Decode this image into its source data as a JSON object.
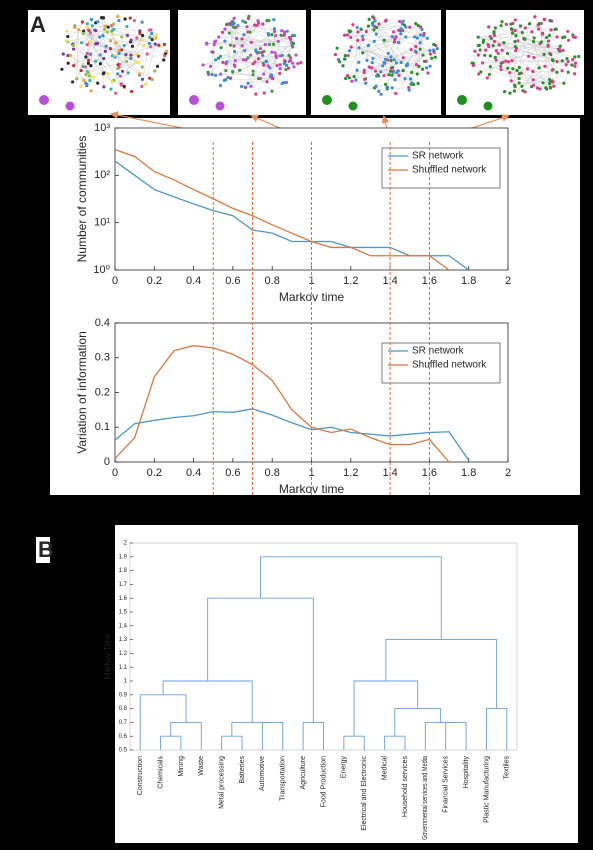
{
  "panels": {
    "a": "A",
    "b": "B"
  },
  "chart_data": [
    {
      "type": "line",
      "yscale": "log",
      "legend": "upper right",
      "ylabel": "Number of communities",
      "xlabel": "Markov time",
      "x": [
        0,
        0.1,
        0.2,
        0.3,
        0.4,
        0.5,
        0.6,
        0.7,
        0.8,
        0.9,
        1.0,
        1.1,
        1.2,
        1.3,
        1.4,
        1.5,
        1.6,
        1.7,
        1.8
      ],
      "series": [
        {
          "name": "SR network",
          "color": "#4f97c9",
          "values": [
            200,
            100,
            50,
            35,
            25,
            18,
            14,
            7,
            6,
            4,
            4,
            4,
            3,
            3,
            3,
            2,
            2,
            2,
            1
          ]
        },
        {
          "name": "Shuffled network",
          "color": "#d9773f",
          "values": [
            350,
            250,
            120,
            80,
            50,
            32,
            20,
            14,
            9,
            6,
            4,
            3,
            3,
            2,
            2,
            2,
            2,
            1,
            null
          ]
        }
      ],
      "xlim": [
        0,
        2
      ],
      "xticks": [
        0,
        0.2,
        0.4,
        0.6,
        0.8,
        1,
        1.2,
        1.4,
        1.6,
        1.8,
        2
      ],
      "ylim": [
        1,
        1000
      ],
      "yticks": [
        {
          "value": 1,
          "label": "10⁰"
        },
        {
          "value": 10,
          "label": "10¹"
        },
        {
          "value": 100,
          "label": "10²"
        },
        {
          "value": 1000,
          "label": "10³"
        }
      ],
      "vlines": [
        0.5,
        0.7,
        1.0,
        1.4,
        1.6
      ],
      "vline_color": "#e06a2a"
    },
    {
      "type": "line",
      "legend": "upper right",
      "ylabel": "Variation of information",
      "xlabel": "Markov time",
      "x": [
        0,
        0.1,
        0.2,
        0.3,
        0.4,
        0.5,
        0.6,
        0.7,
        0.8,
        0.9,
        1.0,
        1.1,
        1.2,
        1.3,
        1.4,
        1.5,
        1.6,
        1.7,
        1.8
      ],
      "series": [
        {
          "name": "SR network",
          "color": "#4f97c9",
          "values": [
            0.063,
            0.11,
            0.12,
            0.128,
            0.133,
            0.145,
            0.143,
            0.153,
            0.135,
            0.113,
            0.093,
            0.1,
            0.085,
            0.08,
            0.075,
            0.08,
            0.085,
            0.087,
            0.005
          ]
        },
        {
          "name": "Shuffled network",
          "color": "#d9773f",
          "values": [
            0.01,
            0.07,
            0.245,
            0.32,
            0.335,
            0.328,
            0.31,
            0.28,
            0.235,
            0.15,
            0.1,
            0.085,
            0.095,
            0.07,
            0.05,
            0.05,
            0.065,
            0.0,
            null
          ]
        }
      ],
      "xlim": [
        0,
        2
      ],
      "xticks": [
        0,
        0.2,
        0.4,
        0.6,
        0.8,
        1,
        1.2,
        1.4,
        1.6,
        1.8,
        2
      ],
      "ylim": [
        0,
        0.4
      ],
      "yticks": [
        0,
        0.1,
        0.2,
        0.3,
        0.4
      ]
    },
    {
      "type": "dendrogram",
      "ylabel": "Markov Time",
      "color": "#6a9fd8",
      "ylim": [
        0.5,
        2
      ],
      "yticks": [
        0.5,
        0.6,
        0.7,
        0.8,
        0.9,
        1,
        1.1,
        1.2,
        1.3,
        1.4,
        1.5,
        1.6,
        1.7,
        1.8,
        1.9,
        2
      ],
      "tree": {
        "height": 1.9,
        "children": [
          {
            "height": 1.6,
            "children": [
              {
                "height": 1.0,
                "children": [
                  {
                    "height": 0.9,
                    "children": [
                      {
                        "label": "Construction"
                      },
                      {
                        "height": 0.7,
                        "children": [
                          {
                            "height": 0.6,
                            "children": [
                              {
                                "label": "Chemicals"
                              },
                              {
                                "label": "Mining"
                              }
                            ]
                          },
                          {
                            "label": "Waste"
                          }
                        ]
                      }
                    ]
                  },
                  {
                    "height": 0.7,
                    "children": [
                      {
                        "height": 0.6,
                        "children": [
                          {
                            "label": "Metal processing"
                          },
                          {
                            "label": "Batteries"
                          }
                        ]
                      },
                      {
                        "height": 0.7,
                        "children": [
                          {
                            "label": "Automotive"
                          },
                          {
                            "label": "Transportation"
                          }
                        ]
                      }
                    ]
                  }
                ]
              },
              {
                "height": 0.7,
                "children": [
                  {
                    "label": "Agriculture"
                  },
                  {
                    "label": "Food Production"
                  }
                ]
              }
            ]
          },
          {
            "height": 1.3,
            "children": [
              {
                "height": 1.0,
                "children": [
                  {
                    "height": 0.6,
                    "children": [
                      {
                        "label": "Energy"
                      },
                      {
                        "label": "Electrical and Electronic"
                      }
                    ]
                  },
                  {
                    "height": 0.8,
                    "children": [
                      {
                        "height": 0.6,
                        "children": [
                          {
                            "label": "Medical"
                          },
                          {
                            "label": "Household  services"
                          }
                        ]
                      },
                      {
                        "height": 0.7,
                        "children": [
                          {
                            "label": "Governmental services and Media"
                          },
                          {
                            "height": 0.7,
                            "children": [
                              {
                                "label": "Financial Services"
                              },
                              {
                                "label": "Hospitality"
                              }
                            ]
                          }
                        ]
                      }
                    ]
                  }
                ]
              },
              {
                "height": 0.8,
                "children": [
                  {
                    "label": "Plastic Manufacturing"
                  },
                  {
                    "label": "Textiles"
                  }
                ]
              }
            ]
          }
        ]
      }
    }
  ]
}
